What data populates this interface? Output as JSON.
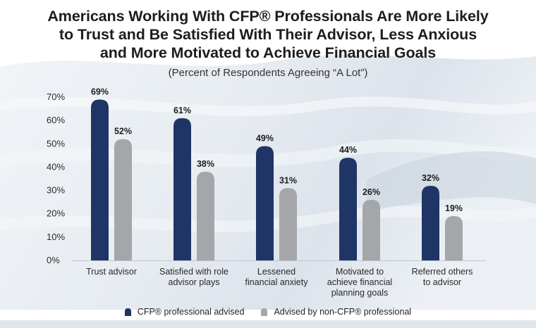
{
  "title": {
    "line1": "Americans Working With CFP® Professionals Are More Likely",
    "line2": "to Trust and Be Satisfied With Their Advisor, Less Anxious",
    "line3": "and More Motivated to Achieve Financial Goals"
  },
  "subtitle": "(Percent of Respondents Agreeing “A Lot”)",
  "colors": {
    "cfp": "#1f3566",
    "non_cfp": "#a4a6a9",
    "background_wash": "#dfe6ec",
    "text": "#222222"
  },
  "chart_data": {
    "type": "bar",
    "categories": [
      [
        "Trust advisor"
      ],
      [
        "Satisfied with role",
        "advisor plays"
      ],
      [
        "Lessened",
        "financial anxiety"
      ],
      [
        "Motivated to",
        "achieve financial",
        "planning goals"
      ],
      [
        "Referred others",
        "to advisor"
      ]
    ],
    "series": [
      {
        "name": "CFP® professional advised",
        "values": [
          69,
          61,
          49,
          44,
          32
        ],
        "labels": [
          "69%",
          "61%",
          "49%",
          "44%",
          "32%"
        ]
      },
      {
        "name": "Advised by non-CFP® professional",
        "values": [
          52,
          38,
          31,
          26,
          19
        ],
        "labels": [
          "52%",
          "38%",
          "31%",
          "26%",
          "19%"
        ]
      }
    ],
    "ylim": [
      0,
      70
    ],
    "yticks": [
      0,
      10,
      20,
      30,
      40,
      50,
      60,
      70
    ],
    "ytick_labels": [
      "0%",
      "10%",
      "20%",
      "30%",
      "40%",
      "50%",
      "60%",
      "70%"
    ],
    "grid": false,
    "legend_position": "bottom-center"
  }
}
